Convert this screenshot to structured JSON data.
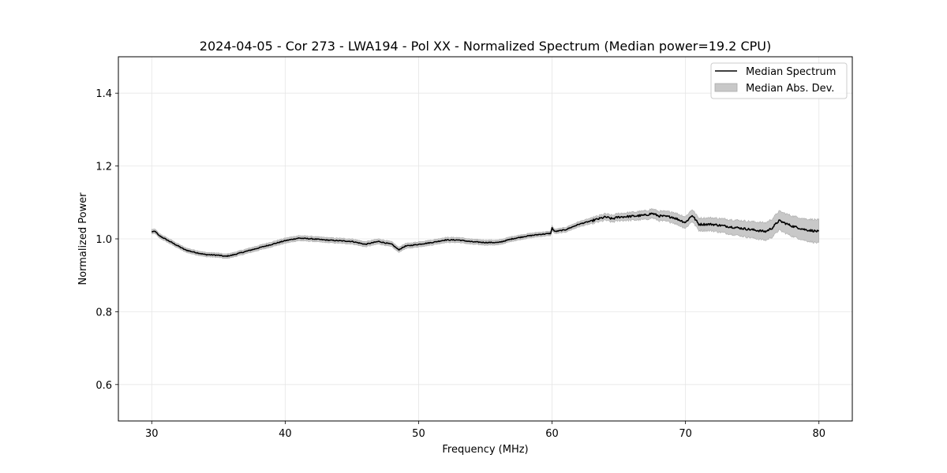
{
  "chart_data": {
    "type": "line",
    "title": "2024-04-05 - Cor 273 - LWA194 - Pol XX - Normalized Spectrum (Median power=19.2 CPU)",
    "xlabel": "Frequency (MHz)",
    "ylabel": "Normalized Power",
    "xlim": [
      27.5,
      82.5
    ],
    "ylim": [
      0.5,
      1.5
    ],
    "xticks": [
      30,
      40,
      50,
      60,
      70,
      80
    ],
    "yticks": [
      0.6,
      0.8,
      1.0,
      1.2,
      1.4
    ],
    "xtick_labels": [
      "30",
      "40",
      "50",
      "60",
      "70",
      "80"
    ],
    "ytick_labels": [
      "0.6",
      "0.8",
      "1.0",
      "1.2",
      "1.4"
    ],
    "grid": true,
    "legend_position": "top-right",
    "series": [
      {
        "name": "Median Spectrum",
        "color": "#000000",
        "x": [
          30.0,
          30.3,
          30.5,
          31.0,
          31.5,
          32.0,
          32.5,
          33.0,
          34.0,
          35.0,
          35.5,
          36.0,
          37.0,
          38.0,
          39.0,
          40.0,
          41.0,
          42.0,
          43.0,
          44.0,
          45.0,
          46.0,
          47.0,
          48.0,
          48.5,
          49.0,
          50.0,
          51.0,
          52.0,
          53.0,
          54.0,
          55.0,
          56.0,
          57.0,
          58.0,
          59.0,
          59.9,
          60.0,
          60.2,
          61.0,
          62.0,
          63.0,
          64.0,
          64.5,
          65.0,
          66.0,
          67.0,
          67.5,
          68.0,
          69.0,
          70.0,
          70.5,
          71.0,
          72.0,
          73.0,
          74.0,
          75.0,
          76.0,
          76.5,
          77.0,
          78.0,
          79.0,
          80.0
        ],
        "values": [
          1.02,
          1.02,
          1.01,
          1.0,
          0.99,
          0.98,
          0.97,
          0.965,
          0.957,
          0.955,
          0.952,
          0.955,
          0.965,
          0.975,
          0.985,
          0.995,
          1.002,
          1.0,
          0.997,
          0.995,
          0.993,
          0.985,
          0.993,
          0.985,
          0.97,
          0.98,
          0.985,
          0.99,
          0.997,
          0.997,
          0.992,
          0.99,
          0.99,
          1.0,
          1.007,
          1.012,
          1.015,
          1.03,
          1.02,
          1.025,
          1.04,
          1.05,
          1.06,
          1.055,
          1.06,
          1.062,
          1.065,
          1.07,
          1.063,
          1.06,
          1.045,
          1.065,
          1.04,
          1.04,
          1.035,
          1.03,
          1.025,
          1.02,
          1.03,
          1.05,
          1.035,
          1.025,
          1.02
        ]
      }
    ],
    "band": {
      "name": "Median Abs. Dev.",
      "color": "#c8c8c8",
      "x": [
        30,
        35,
        40,
        45,
        50,
        55,
        60,
        63,
        65,
        67,
        68,
        70,
        72,
        74,
        76,
        78,
        80
      ],
      "mad": [
        0.006,
        0.006,
        0.007,
        0.007,
        0.007,
        0.007,
        0.006,
        0.008,
        0.01,
        0.012,
        0.013,
        0.016,
        0.018,
        0.021,
        0.024,
        0.028,
        0.032
      ]
    }
  }
}
